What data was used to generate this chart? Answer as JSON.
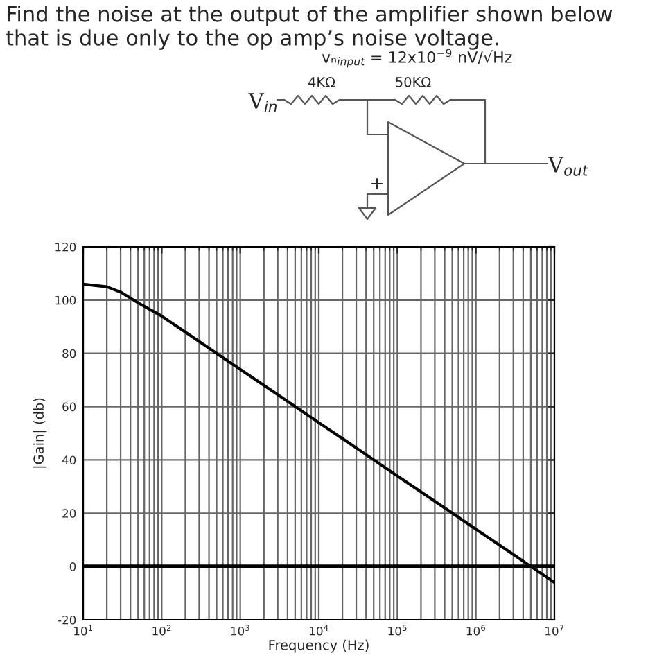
{
  "chart_data": {
    "type": "line",
    "title": "Find the noise at the output of the amplifier shown below that is due only to the op amp’s noise voltage.",
    "annotations": [
      "vₙ$_{input}$ = 12x10$^{−9}$ nV/√Hz",
      "4KΩ",
      "50KΩ",
      "V$_{in}$",
      "V$_{out}$",
      "+"
    ],
    "xlabel": "Frequency (Hz)",
    "ylabel": "|Gain| (db)",
    "log": "x",
    "xlim": [
      10,
      10000000
    ],
    "ylim": [
      -20,
      120
    ],
    "xticks": [
      {
        "value": 10,
        "label": "10$^{1}$"
      },
      {
        "value": 100,
        "label": "10$^{2}$"
      },
      {
        "value": 1000,
        "label": "10$^{3}$"
      },
      {
        "value": 10000,
        "label": "10$^{4}$"
      },
      {
        "value": 100000,
        "label": "10$^{5}$"
      },
      {
        "value": 1000000,
        "label": "10$^{6}$"
      },
      {
        "value": 10000000,
        "label": "10$^{7}$"
      }
    ],
    "yticks": [
      -20,
      0,
      20,
      40,
      60,
      80,
      100,
      120
    ],
    "grid": true,
    "ref_lines": [
      {
        "axis": "y",
        "value": 0,
        "color": "#000000"
      }
    ],
    "series": [
      {
        "color": "#000000",
        "x": [
          10,
          20,
          30,
          50,
          100,
          200,
          500,
          1000,
          3000,
          10000,
          30000,
          100000,
          300000,
          1000000,
          3000000,
          10000000
        ],
        "values": [
          106,
          105,
          103,
          99,
          94,
          88,
          80,
          74,
          64.5,
          54,
          44.5,
          34,
          24.5,
          14,
          4.5,
          -6
        ]
      }
    ]
  }
}
